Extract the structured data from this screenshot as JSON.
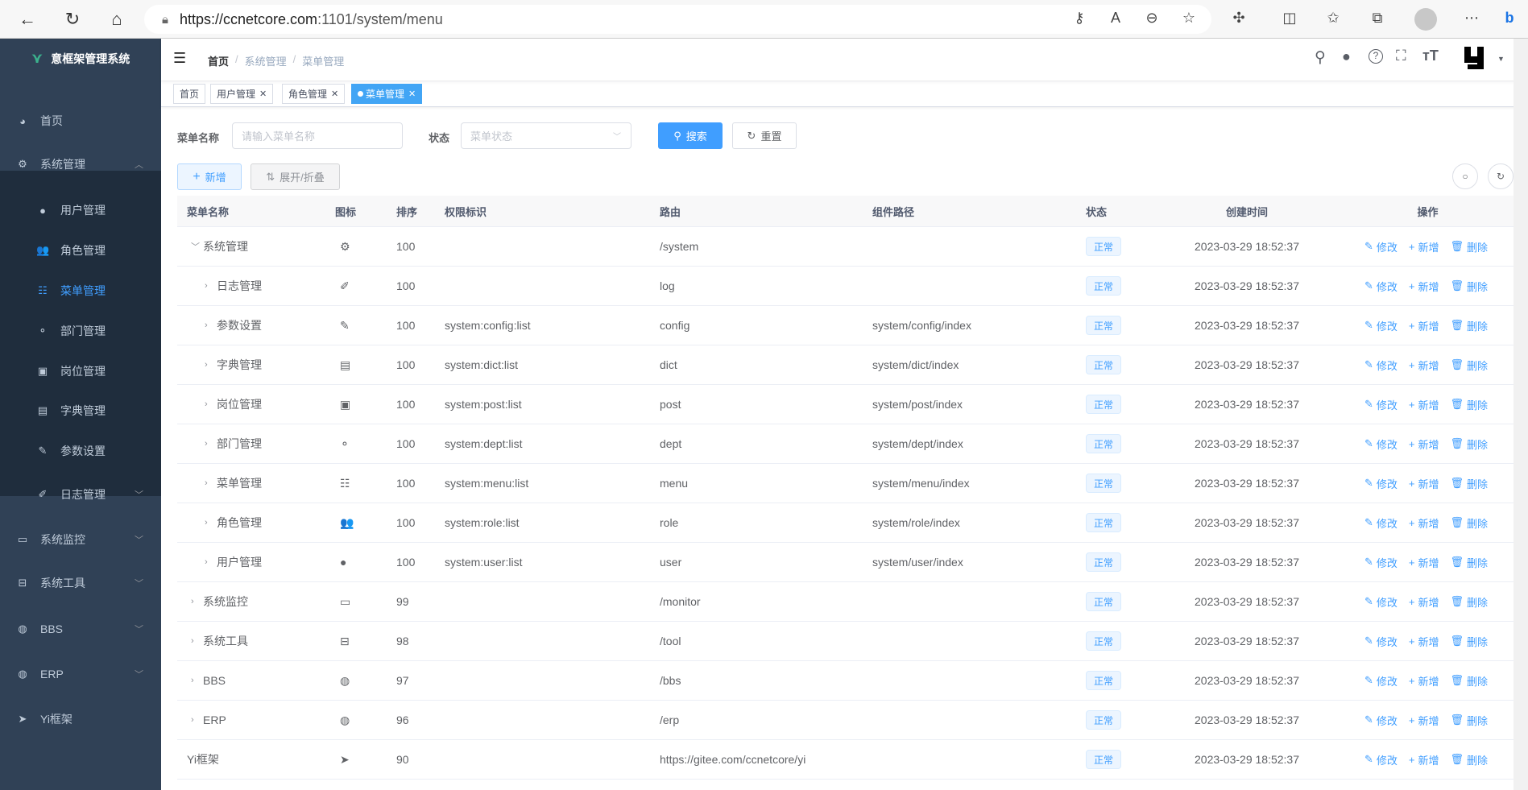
{
  "browser": {
    "url_host": "https://ccnetcore.com",
    "url_path": ":1101/system/menu"
  },
  "sidebar": {
    "title": "意框架管理系统",
    "items": [
      {
        "label": "首页",
        "icon": "dashboard-icon",
        "glyph": "◕",
        "chev": ""
      },
      {
        "label": "系统管理",
        "icon": "gear-icon",
        "glyph": "⚙",
        "chev": "︿"
      },
      {
        "label": "用户管理",
        "icon": "user-icon",
        "glyph": "●",
        "chev": "",
        "sub": true
      },
      {
        "label": "角色管理",
        "icon": "peoples-icon",
        "glyph": "👥",
        "chev": "",
        "sub": true
      },
      {
        "label": "菜单管理",
        "icon": "tree-table-icon",
        "glyph": "☷",
        "chev": "",
        "sub": true,
        "active": true
      },
      {
        "label": "部门管理",
        "icon": "tree-icon",
        "glyph": "⚬",
        "chev": "",
        "sub": true
      },
      {
        "label": "岗位管理",
        "icon": "post-icon",
        "glyph": "▣",
        "chev": "",
        "sub": true
      },
      {
        "label": "字典管理",
        "icon": "dict-icon",
        "glyph": "▤",
        "chev": "",
        "sub": true
      },
      {
        "label": "参数设置",
        "icon": "edit-icon",
        "glyph": "✎",
        "chev": "",
        "sub": true
      },
      {
        "label": "日志管理",
        "icon": "log-icon",
        "glyph": "✐",
        "chev": "﹀",
        "sub": true
      },
      {
        "label": "系统监控",
        "icon": "monitor-icon",
        "glyph": "▭",
        "chev": "﹀"
      },
      {
        "label": "系统工具",
        "icon": "tool-icon",
        "glyph": "⊟",
        "chev": "﹀"
      },
      {
        "label": "BBS",
        "icon": "globe-icon",
        "glyph": "◍",
        "chev": "﹀"
      },
      {
        "label": "ERP",
        "icon": "globe-icon",
        "glyph": "◍",
        "chev": "﹀"
      },
      {
        "label": "Yi框架",
        "icon": "send-icon",
        "glyph": "➤",
        "chev": ""
      }
    ]
  },
  "breadcrumb": [
    "首页",
    "系统管理",
    "菜单管理"
  ],
  "tags": [
    {
      "label": "首页",
      "closable": false
    },
    {
      "label": "用户管理",
      "closable": true
    },
    {
      "label": "角色管理",
      "closable": true
    },
    {
      "label": "菜单管理",
      "closable": true,
      "active": true
    }
  ],
  "search": {
    "name_label": "菜单名称",
    "name_placeholder": "请输入菜单名称",
    "status_label": "状态",
    "status_placeholder": "菜单状态",
    "search_btn": "搜索",
    "reset_btn": "重置"
  },
  "toolbar": {
    "add_btn": "新增",
    "expand_btn": "展开/折叠"
  },
  "table": {
    "headers": [
      "菜单名称",
      "图标",
      "排序",
      "权限标识",
      "路由",
      "组件路径",
      "状态",
      "创建时间",
      "操作"
    ],
    "actions": [
      "修改",
      "新增",
      "删除"
    ],
    "rows": [
      {
        "name": "系统管理",
        "level": 0,
        "arrow": "open",
        "icon": "gear-icon",
        "glyph": "⚙",
        "order": "100",
        "perm": "",
        "route": "/system",
        "component": "",
        "status": "正常",
        "time": "2023-03-29 18:52:37"
      },
      {
        "name": "日志管理",
        "level": 1,
        "arrow": "closed",
        "icon": "log-icon",
        "glyph": "✐",
        "order": "100",
        "perm": "",
        "route": "log",
        "component": "",
        "status": "正常",
        "time": "2023-03-29 18:52:37"
      },
      {
        "name": "参数设置",
        "level": 1,
        "arrow": "closed",
        "icon": "edit-icon",
        "glyph": "✎",
        "order": "100",
        "perm": "system:config:list",
        "route": "config",
        "component": "system/config/index",
        "status": "正常",
        "time": "2023-03-29 18:52:37"
      },
      {
        "name": "字典管理",
        "level": 1,
        "arrow": "closed",
        "icon": "dict-icon",
        "glyph": "▤",
        "order": "100",
        "perm": "system:dict:list",
        "route": "dict",
        "component": "system/dict/index",
        "status": "正常",
        "time": "2023-03-29 18:52:37"
      },
      {
        "name": "岗位管理",
        "level": 1,
        "arrow": "closed",
        "icon": "post-icon",
        "glyph": "▣",
        "order": "100",
        "perm": "system:post:list",
        "route": "post",
        "component": "system/post/index",
        "status": "正常",
        "time": "2023-03-29 18:52:37"
      },
      {
        "name": "部门管理",
        "level": 1,
        "arrow": "closed",
        "icon": "tree-icon",
        "glyph": "⚬",
        "order": "100",
        "perm": "system:dept:list",
        "route": "dept",
        "component": "system/dept/index",
        "status": "正常",
        "time": "2023-03-29 18:52:37"
      },
      {
        "name": "菜单管理",
        "level": 1,
        "arrow": "closed",
        "icon": "tree-table-icon",
        "glyph": "☷",
        "order": "100",
        "perm": "system:menu:list",
        "route": "menu",
        "component": "system/menu/index",
        "status": "正常",
        "time": "2023-03-29 18:52:37"
      },
      {
        "name": "角色管理",
        "level": 1,
        "arrow": "closed",
        "icon": "peoples-icon",
        "glyph": "👥",
        "order": "100",
        "perm": "system:role:list",
        "route": "role",
        "component": "system/role/index",
        "status": "正常",
        "time": "2023-03-29 18:52:37"
      },
      {
        "name": "用户管理",
        "level": 1,
        "arrow": "closed",
        "icon": "user-icon",
        "glyph": "●",
        "order": "100",
        "perm": "system:user:list",
        "route": "user",
        "component": "system/user/index",
        "status": "正常",
        "time": "2023-03-29 18:52:37"
      },
      {
        "name": "系统监控",
        "level": 0,
        "arrow": "closed",
        "icon": "monitor-icon",
        "glyph": "▭",
        "order": "99",
        "perm": "",
        "route": "/monitor",
        "component": "",
        "status": "正常",
        "time": "2023-03-29 18:52:37"
      },
      {
        "name": "系统工具",
        "level": 0,
        "arrow": "closed",
        "icon": "tool-icon",
        "glyph": "⊟",
        "order": "98",
        "perm": "",
        "route": "/tool",
        "component": "",
        "status": "正常",
        "time": "2023-03-29 18:52:37"
      },
      {
        "name": "BBS",
        "level": 0,
        "arrow": "closed",
        "icon": "globe-icon",
        "glyph": "◍",
        "order": "97",
        "perm": "",
        "route": "/bbs",
        "component": "",
        "status": "正常",
        "time": "2023-03-29 18:52:37"
      },
      {
        "name": "ERP",
        "level": 0,
        "arrow": "closed",
        "icon": "globe-icon",
        "glyph": "◍",
        "order": "96",
        "perm": "",
        "route": "/erp",
        "component": "",
        "status": "正常",
        "time": "2023-03-29 18:52:37"
      },
      {
        "name": "Yi框架",
        "level": 0,
        "arrow": "none",
        "icon": "send-icon",
        "glyph": "➤",
        "order": "90",
        "perm": "",
        "route": "https://gitee.com/ccnetcore/yi",
        "component": "",
        "status": "正常",
        "time": "2023-03-29 18:52:37"
      }
    ]
  },
  "colors": {
    "sidebar_bg": "#304156",
    "submenu_bg": "#1f2d3d",
    "primary": "#409eff",
    "tag_active": "#42a5f5"
  }
}
